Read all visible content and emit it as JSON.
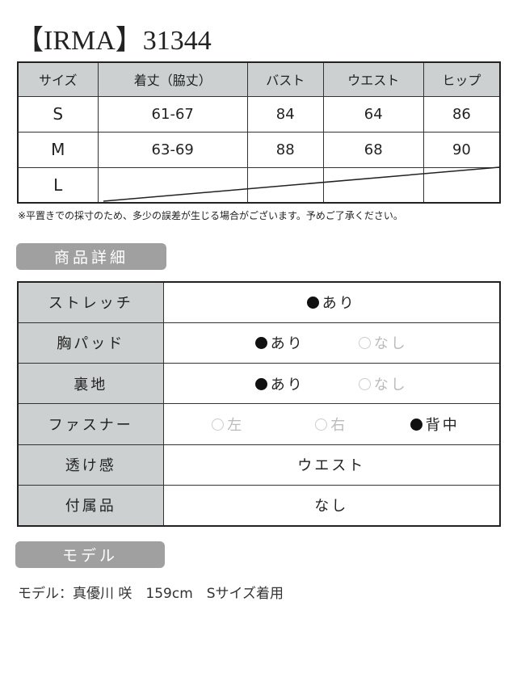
{
  "title": "【IRMA】31344",
  "size_table": {
    "headers": [
      "サイズ",
      "着丈（脇丈）",
      "バスト",
      "ウエスト",
      "ヒップ"
    ],
    "rows": [
      [
        "S",
        "61-67",
        "84",
        "64",
        "86"
      ],
      [
        "M",
        "63-69",
        "88",
        "68",
        "90"
      ],
      [
        "L",
        "",
        "",
        "",
        ""
      ]
    ]
  },
  "note": "※平置きでの採寸のため、多少の誤差が生じる場合がございます。予めご了承ください。",
  "details_label": "商品詳細",
  "details": {
    "stretch": {
      "label": "ストレッチ",
      "options": [
        {
          "text": "あり",
          "selected": true
        }
      ]
    },
    "pad": {
      "label": "胸パッド",
      "options": [
        {
          "text": "あり",
          "selected": true
        },
        {
          "text": "なし",
          "selected": false
        }
      ]
    },
    "lining": {
      "label": "裏地",
      "options": [
        {
          "text": "あり",
          "selected": true
        },
        {
          "text": "なし",
          "selected": false
        }
      ]
    },
    "zipper": {
      "label": "ファスナー",
      "options": [
        {
          "text": "左",
          "selected": false
        },
        {
          "text": "右",
          "selected": false
        },
        {
          "text": "背中",
          "selected": true
        }
      ]
    },
    "sheer": {
      "label": "透け感",
      "value": "ウエスト"
    },
    "accessories": {
      "label": "付属品",
      "value": "なし"
    }
  },
  "model_label": "モデル",
  "model_text": "モデル：真優川 咲　159cm　Sサイズ着用"
}
